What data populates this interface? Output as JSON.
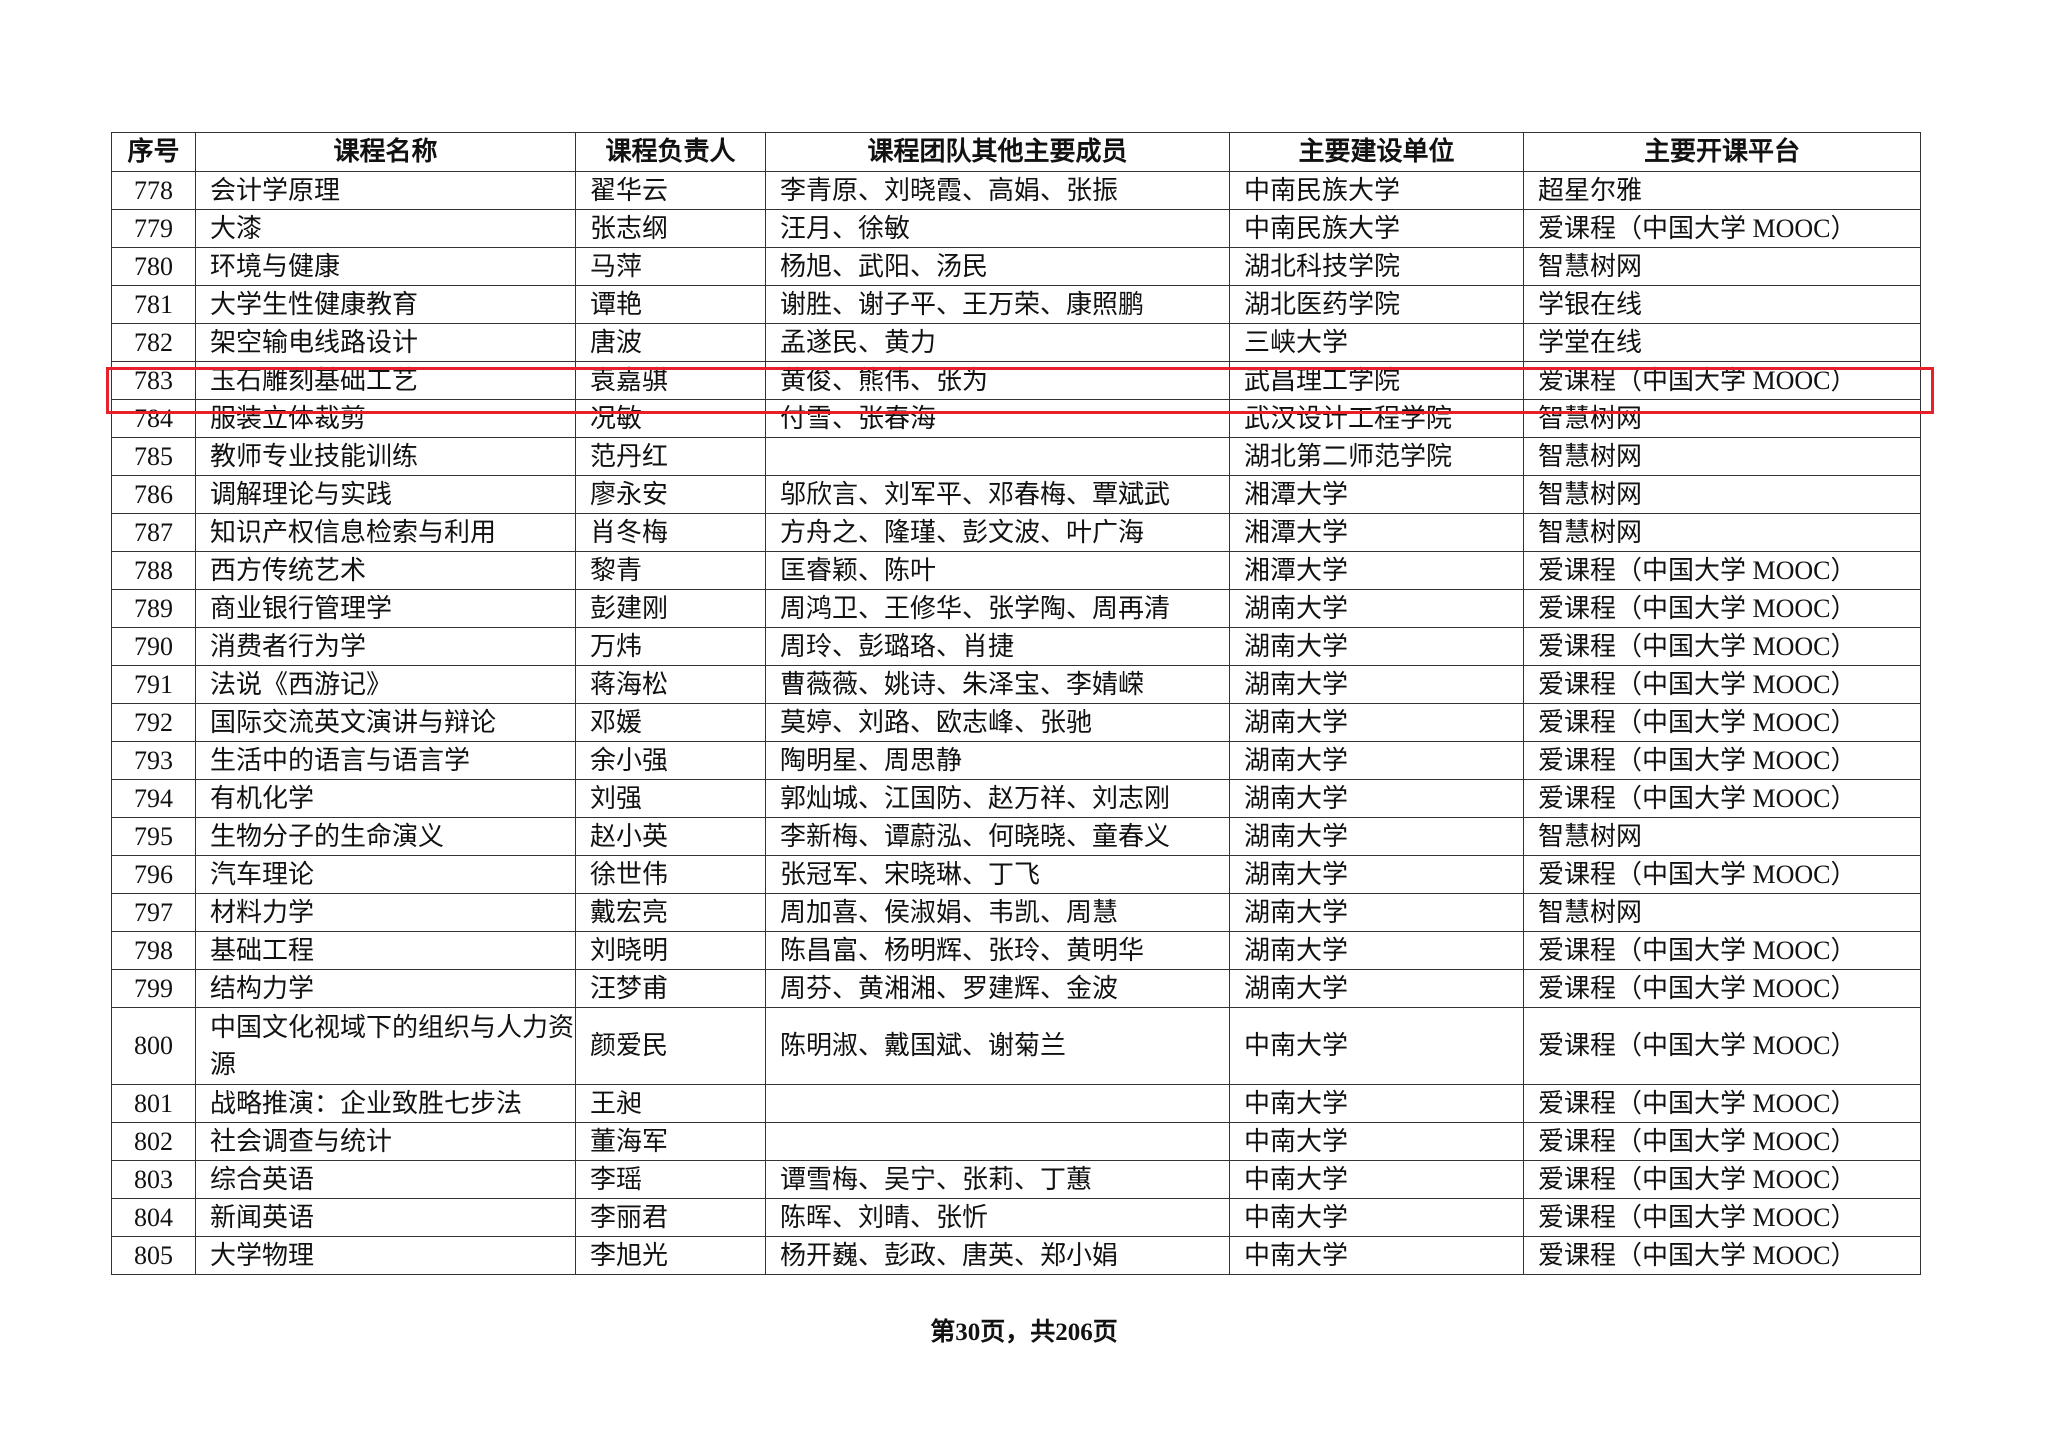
{
  "table": {
    "headers": [
      "序号",
      "课程名称",
      "课程负责人",
      "课程团队其他主要成员",
      "主要建设单位",
      "主要开课平台"
    ],
    "rows": [
      [
        "778",
        "会计学原理",
        "翟华云",
        "李青原、刘晓霞、高娟、张振",
        "中南民族大学",
        "超星尔雅"
      ],
      [
        "779",
        "大漆",
        "张志纲",
        "汪月、徐敏",
        "中南民族大学",
        "爱课程（中国大学 MOOC）"
      ],
      [
        "780",
        "环境与健康",
        "马萍",
        "杨旭、武阳、汤民",
        "湖北科技学院",
        "智慧树网"
      ],
      [
        "781",
        "大学生性健康教育",
        "谭艳",
        "谢胜、谢子平、王万荣、康照鹏",
        "湖北医药学院",
        "学银在线"
      ],
      [
        "782",
        "架空输电线路设计",
        "唐波",
        "孟遂民、黄力",
        "三峡大学",
        "学堂在线"
      ],
      [
        "783",
        "玉石雕刻基础工艺",
        "袁嘉骐",
        "黄俊、熊伟、张为",
        "武昌理工学院",
        "爱课程（中国大学 MOOC）"
      ],
      [
        "784",
        "服装立体裁剪",
        "况敏",
        "付雪、张春海",
        "武汉设计工程学院",
        "智慧树网"
      ],
      [
        "785",
        "教师专业技能训练",
        "范丹红",
        "",
        "湖北第二师范学院",
        "智慧树网"
      ],
      [
        "786",
        "调解理论与实践",
        "廖永安",
        "邬欣言、刘军平、邓春梅、覃斌武",
        "湘潭大学",
        "智慧树网"
      ],
      [
        "787",
        "知识产权信息检索与利用",
        "肖冬梅",
        "方舟之、隆瑾、彭文波、叶广海",
        "湘潭大学",
        "智慧树网"
      ],
      [
        "788",
        "西方传统艺术",
        "黎青",
        "匡睿颖、陈叶",
        "湘潭大学",
        "爱课程（中国大学 MOOC）"
      ],
      [
        "789",
        "商业银行管理学",
        "彭建刚",
        "周鸿卫、王修华、张学陶、周再清",
        "湖南大学",
        "爱课程（中国大学 MOOC）"
      ],
      [
        "790",
        "消费者行为学",
        "万炜",
        "周玲、彭璐珞、肖捷",
        "湖南大学",
        "爱课程（中国大学 MOOC）"
      ],
      [
        "791",
        "法说《西游记》",
        "蒋海松",
        "曹薇薇、姚诗、朱泽宝、李婧嵘",
        "湖南大学",
        "爱课程（中国大学 MOOC）"
      ],
      [
        "792",
        "国际交流英文演讲与辩论",
        "邓媛",
        "莫婷、刘路、欧志峰、张驰",
        "湖南大学",
        "爱课程（中国大学 MOOC）"
      ],
      [
        "793",
        "生活中的语言与语言学",
        "余小强",
        "陶明星、周思静",
        "湖南大学",
        "爱课程（中国大学 MOOC）"
      ],
      [
        "794",
        "有机化学",
        "刘强",
        "郭灿城、江国防、赵万祥、刘志刚",
        "湖南大学",
        "爱课程（中国大学 MOOC）"
      ],
      [
        "795",
        "生物分子的生命演义",
        "赵小英",
        "李新梅、谭蔚泓、何晓晓、童春义",
        "湖南大学",
        "智慧树网"
      ],
      [
        "796",
        "汽车理论",
        "徐世伟",
        "张冠军、宋晓琳、丁飞",
        "湖南大学",
        "爱课程（中国大学 MOOC）"
      ],
      [
        "797",
        "材料力学",
        "戴宏亮",
        "周加喜、侯淑娟、韦凯、周慧",
        "湖南大学",
        "智慧树网"
      ],
      [
        "798",
        "基础工程",
        "刘晓明",
        "陈昌富、杨明辉、张玲、黄明华",
        "湖南大学",
        "爱课程（中国大学 MOOC）"
      ],
      [
        "799",
        "结构力学",
        "汪梦甫",
        "周芬、黄湘湘、罗建辉、金波",
        "湖南大学",
        "爱课程（中国大学 MOOC）"
      ],
      [
        "800",
        "中国文化视域下的组织与人力资源",
        "颜爱民",
        "陈明淑、戴国斌、谢菊兰",
        "中南大学",
        "爱课程（中国大学 MOOC）"
      ],
      [
        "801",
        "战略推演：企业致胜七步法",
        "王昶",
        "",
        "中南大学",
        "爱课程（中国大学 MOOC）"
      ],
      [
        "802",
        "社会调查与统计",
        "董海军",
        "",
        "中南大学",
        "爱课程（中国大学 MOOC）"
      ],
      [
        "803",
        "综合英语",
        "李瑶",
        "谭雪梅、吴宁、张莉、丁蕙",
        "中南大学",
        "爱课程（中国大学 MOOC）"
      ],
      [
        "804",
        "新闻英语",
        "李丽君",
        "陈晖、刘晴、张忻",
        "中南大学",
        "爱课程（中国大学 MOOC）"
      ],
      [
        "805",
        "大学物理",
        "李旭光",
        "杨开巍、彭政、唐英、郑小娟",
        "中南大学",
        "爱课程（中国大学 MOOC）"
      ]
    ],
    "highlighted_row": "783",
    "highlight_color": "#e8202a"
  },
  "footer": {
    "page_label": "第30页，共206页"
  }
}
